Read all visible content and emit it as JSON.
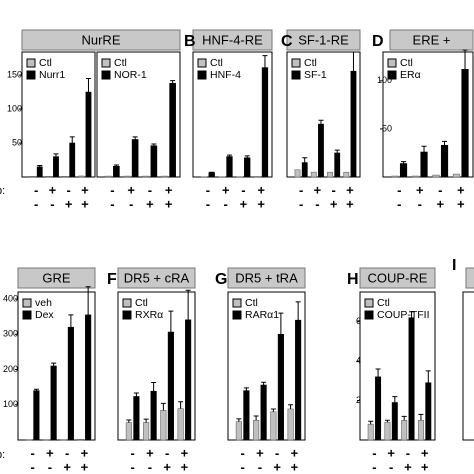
{
  "row_label": "p:",
  "extra_label": "I",
  "chart_data": [
    {
      "type": "bar",
      "title": "NurRE",
      "ylim": [
        0,
        184
      ],
      "yticks": [
        50,
        100,
        150
      ],
      "series": [
        {
          "name": "Ctl",
          "color": "#c0c0c0",
          "values": [
            1,
            1,
            1,
            1.5
          ]
        },
        {
          "name": "Nurr1",
          "color": "#000000",
          "values": [
            15,
            30,
            50,
            125
          ],
          "errors": [
            2,
            4,
            9,
            20
          ]
        }
      ],
      "conditions": [
        [
          "-",
          "+",
          "-",
          "+"
        ],
        [
          "-",
          "-",
          "+",
          "+"
        ]
      ]
    },
    {
      "type": "bar",
      "ylim": [
        0,
        140
      ],
      "series": [
        {
          "name": "Ctl",
          "color": "#c0c0c0",
          "values": [
            1,
            1,
            1,
            1
          ]
        },
        {
          "name": "NOR-1",
          "color": "#000000",
          "values": [
            12,
            42,
            35,
            105
          ],
          "errors": [
            1.5,
            3,
            2,
            3
          ]
        }
      ],
      "conditions": [
        [
          "-",
          "+",
          "-",
          "+"
        ],
        [
          "-",
          "-",
          "+",
          "+"
        ]
      ]
    },
    {
      "type": "bar",
      "label": "B",
      "title": "HNF-4-RE",
      "ylim": [
        0,
        520
      ],
      "series": [
        {
          "name": "Ctl",
          "color": "#c0c0c0",
          "values": [
            1,
            1,
            1,
            2
          ]
        },
        {
          "name": "HNF-4",
          "color": "#000000",
          "values": [
            18,
            85,
            80,
            455
          ],
          "errors": [
            2,
            6,
            8,
            50
          ]
        }
      ],
      "conditions": [
        [
          "-",
          "+",
          "-",
          "+"
        ],
        [
          "-",
          "-",
          "+",
          "+"
        ]
      ]
    },
    {
      "type": "bar",
      "label": "C",
      "title": "SF-1-RE",
      "ylim": [
        0,
        26
      ],
      "series": [
        {
          "name": "Ctl",
          "color": "#c0c0c0",
          "values": [
            1.5,
            1,
            1,
            1
          ]
        },
        {
          "name": "SF-1",
          "color": "#000000",
          "values": [
            3,
            11,
            5,
            22
          ],
          "errors": [
            1,
            0.8,
            0.6,
            4
          ]
        }
      ],
      "conditions": [
        [
          "-",
          "+",
          "-",
          "+"
        ],
        [
          "-",
          "-",
          "+",
          "+"
        ]
      ]
    },
    {
      "type": "bar",
      "label": "D",
      "title": "ERE +",
      "ylim": [
        0,
        130
      ],
      "yticks": [
        50,
        100
      ],
      "series": [
        {
          "name": "Ctl",
          "color": "#c0c0c0",
          "values": [
            1,
            1,
            2,
            3
          ]
        },
        {
          "name": "ERα",
          "color": "#000000",
          "values": [
            14,
            26,
            33,
            112
          ],
          "errors": [
            2,
            6,
            4,
            20
          ]
        }
      ],
      "conditions": [
        [
          "-",
          "+",
          "-",
          "+"
        ],
        [
          "-",
          "-",
          "+",
          "+"
        ]
      ]
    },
    {
      "type": "bar",
      "title": "GRE",
      "ylim": [
        0,
        420
      ],
      "yticks": [
        100,
        200,
        300,
        400
      ],
      "series": [
        {
          "name": "veh",
          "color": "#c0c0c0",
          "values": [
            1,
            1,
            1,
            2
          ]
        },
        {
          "name": "Dex",
          "color": "#000000",
          "values": [
            140,
            210,
            320,
            355
          ],
          "errors": [
            4,
            8,
            35,
            80
          ]
        }
      ],
      "conditions": [
        [
          "-",
          "+",
          "-",
          "+"
        ],
        [
          "-",
          "-",
          "+",
          "+"
        ]
      ]
    },
    {
      "type": "bar",
      "label": "F",
      "title": "DR5 + cRA",
      "ylim": [
        0,
        8.5
      ],
      "series": [
        {
          "name": "Ctl",
          "color": "#c0c0c0",
          "values": [
            1,
            1,
            1.7,
            1.8
          ],
          "errors": [
            0.15,
            0.2,
            0.4,
            0.4
          ]
        },
        {
          "name": "RXRα",
          "color": "#000000",
          "values": [
            2.5,
            2.8,
            6.2,
            6.9
          ],
          "errors": [
            0.2,
            0.5,
            1.2,
            1.7
          ]
        }
      ],
      "conditions": [
        [
          "-",
          "+",
          "-",
          "+"
        ],
        [
          "-",
          "-",
          "+",
          "+"
        ]
      ]
    },
    {
      "type": "bar",
      "label": "G",
      "title": "DR5 + tRA",
      "ylim": [
        0,
        10.5
      ],
      "series": [
        {
          "name": "Ctl",
          "color": "#c0c0c0",
          "values": [
            1.3,
            1.4,
            2,
            2.2
          ],
          "errors": [
            0.2,
            0.3,
            0.2,
            0.3
          ]
        },
        {
          "name": "RARα1",
          "color": "#000000",
          "values": [
            3.5,
            3.9,
            7.5,
            8.5
          ],
          "errors": [
            0.2,
            0.2,
            1.5,
            1.3
          ]
        }
      ],
      "conditions": [
        [
          "-",
          "+",
          "-",
          "+"
        ],
        [
          "-",
          "-",
          "+",
          "+"
        ]
      ]
    },
    {
      "type": "bar",
      "label": "H",
      "title": "COUP-RE",
      "ylim": [
        0,
        7.5
      ],
      "yticks": [
        2,
        4,
        6
      ],
      "series": [
        {
          "name": "Ctl",
          "color": "#c0c0c0",
          "values": [
            0.8,
            0.9,
            1,
            1
          ],
          "errors": [
            0.15,
            0.1,
            0.2,
            0.3
          ]
        },
        {
          "name": "COUP-TFII",
          "color": "#000000",
          "values": [
            3.2,
            1.9,
            6.2,
            2.9
          ],
          "errors": [
            0.4,
            0.3,
            0.3,
            0.6
          ]
        }
      ],
      "conditions": [
        [
          "-",
          "+",
          "-",
          "+"
        ],
        [
          "-",
          "-",
          "+",
          "+"
        ]
      ]
    }
  ]
}
